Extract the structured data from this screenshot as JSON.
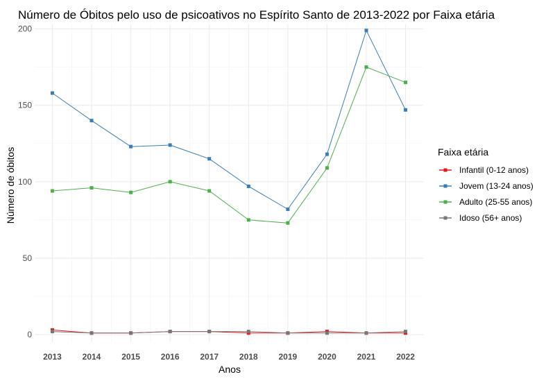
{
  "chart_data": {
    "type": "line",
    "title": "Número de Óbitos pelo uso de psicoativos no Espírito Santo de 2013-2022 por Faixa etária",
    "xlabel": "Anos",
    "ylabel": "Número de óbitos",
    "x": [
      2013,
      2014,
      2015,
      2016,
      2017,
      2018,
      2019,
      2020,
      2021,
      2022
    ],
    "x_tick_labels": [
      "2013",
      "2014",
      "2015",
      "2016",
      "2017",
      "2018",
      "2019",
      "2020",
      "2021",
      "2022"
    ],
    "ylim": [
      -5,
      203
    ],
    "y_ticks": [
      0,
      50,
      100,
      150,
      200
    ],
    "y_tick_labels": [
      "0",
      "50",
      "100",
      "150",
      "200"
    ],
    "grid": true,
    "legend": {
      "title": "Faixa etária",
      "placement": "right"
    },
    "series": [
      {
        "name": "Infantil (0-12 anos)",
        "color": "#e41a1c",
        "values": [
          3,
          1,
          1,
          2,
          2,
          1,
          1,
          2,
          1,
          1
        ]
      },
      {
        "name": "Jovem (13-24 anos)",
        "color": "#377eb8",
        "values": [
          158,
          140,
          123,
          124,
          115,
          97,
          82,
          118,
          199,
          147
        ]
      },
      {
        "name": "Adulto (25-55 anos)",
        "color": "#4daf4a",
        "values": [
          94,
          96,
          93,
          100,
          94,
          75,
          73,
          109,
          175,
          165
        ]
      },
      {
        "name": "Idoso (56+ anos)",
        "color": "#777777",
        "values": [
          2,
          1,
          1,
          2,
          2,
          2,
          1,
          1,
          1,
          2
        ]
      }
    ]
  }
}
